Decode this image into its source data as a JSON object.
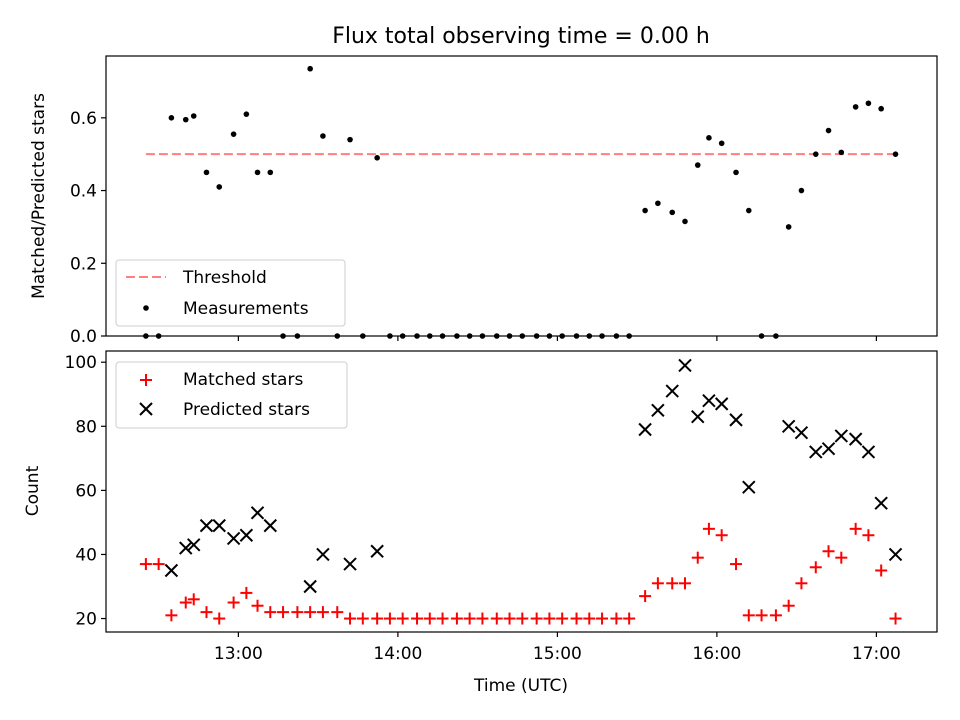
{
  "figure": {
    "title": "Flux total observing time = 0.00 h",
    "xlabel": "Time (UTC)"
  },
  "chart_data": [
    {
      "type": "scatter",
      "panel": "top",
      "title": "Flux total observing time = 0.00 h",
      "xlabel": "",
      "ylabel": "Matched/Predicted stars",
      "x_unit": "hours UTC",
      "xlim": [
        12.17,
        17.38
      ],
      "ylim": [
        0,
        0.77
      ],
      "yticks": [
        0.0,
        0.2,
        0.4,
        0.6
      ],
      "ytick_labels": [
        "0.0",
        "0.2",
        "0.4",
        "0.6"
      ],
      "xticks": [
        13,
        14,
        15,
        16,
        17
      ],
      "grid": false,
      "legend_position": "lower-left",
      "series": [
        {
          "name": "Threshold",
          "kind": "dashed-line",
          "color": "#ff7f7f",
          "x": [
            12.42,
            17.13
          ],
          "y": [
            0.5,
            0.5
          ]
        },
        {
          "name": "Measurements",
          "kind": "dot",
          "color": "#000000",
          "x": [
            12.42,
            12.5,
            12.58,
            12.67,
            12.72,
            12.8,
            12.88,
            12.97,
            13.05,
            13.12,
            13.2,
            13.28,
            13.37,
            13.45,
            13.53,
            13.62,
            13.7,
            13.78,
            13.87,
            13.95,
            14.03,
            14.12,
            14.2,
            14.28,
            14.37,
            14.45,
            14.53,
            14.62,
            14.7,
            14.78,
            14.87,
            14.95,
            15.03,
            15.12,
            15.2,
            15.28,
            15.37,
            15.45,
            15.55,
            15.63,
            15.72,
            15.8,
            15.88,
            15.95,
            16.03,
            16.12,
            16.2,
            16.28,
            16.37,
            16.45,
            16.53,
            16.62,
            16.7,
            16.78,
            16.87,
            16.95,
            17.03,
            17.12
          ],
          "y": [
            0.0,
            0.0,
            0.6,
            0.595,
            0.605,
            0.45,
            0.41,
            0.555,
            0.61,
            0.45,
            0.45,
            0.0,
            0.0,
            0.735,
            0.55,
            0.0,
            0.54,
            0.0,
            0.49,
            0.0,
            0.0,
            0.0,
            0.0,
            0.0,
            0.0,
            0.0,
            0.0,
            0.0,
            0.0,
            0.0,
            0.0,
            0.0,
            0.0,
            0.0,
            0.0,
            0.0,
            0.0,
            0.0,
            0.345,
            0.365,
            0.34,
            0.315,
            0.47,
            0.545,
            0.53,
            0.45,
            0.345,
            0.0,
            0.0,
            0.3,
            0.4,
            0.5,
            0.565,
            0.505,
            0.63,
            0.64,
            0.625,
            0.5
          ]
        }
      ]
    },
    {
      "type": "scatter",
      "panel": "bottom",
      "xlabel": "Time (UTC)",
      "ylabel": "Count",
      "x_unit": "hours UTC",
      "xlim": [
        12.17,
        17.38
      ],
      "ylim": [
        15.8,
        103.5
      ],
      "yticks": [
        20,
        40,
        60,
        80,
        100
      ],
      "ytick_labels": [
        "20",
        "40",
        "60",
        "80",
        "100"
      ],
      "xticks": [
        13,
        14,
        15,
        16,
        17
      ],
      "xtick_labels": [
        "13:00",
        "14:00",
        "15:00",
        "16:00",
        "17:00"
      ],
      "grid": false,
      "legend_position": "upper-left",
      "series": [
        {
          "name": "Matched stars",
          "marker": "+",
          "color": "#ff0000",
          "x": [
            12.42,
            12.5,
            12.58,
            12.67,
            12.72,
            12.8,
            12.88,
            12.97,
            13.05,
            13.12,
            13.2,
            13.28,
            13.37,
            13.45,
            13.53,
            13.62,
            13.7,
            13.78,
            13.87,
            13.95,
            14.03,
            14.12,
            14.2,
            14.28,
            14.37,
            14.45,
            14.53,
            14.62,
            14.7,
            14.78,
            14.87,
            14.95,
            15.03,
            15.12,
            15.2,
            15.28,
            15.37,
            15.45,
            15.55,
            15.63,
            15.72,
            15.8,
            15.88,
            15.95,
            16.03,
            16.12,
            16.2,
            16.28,
            16.37,
            16.45,
            16.53,
            16.62,
            16.7,
            16.78,
            16.87,
            16.95,
            17.03,
            17.12
          ],
          "y": [
            37,
            37,
            21,
            25,
            26,
            22,
            20,
            25,
            28,
            24,
            22,
            22,
            22,
            22,
            22,
            22,
            20,
            20,
            20,
            20,
            20,
            20,
            20,
            20,
            20,
            20,
            20,
            20,
            20,
            20,
            20,
            20,
            20,
            20,
            20,
            20,
            20,
            20,
            27,
            31,
            31,
            31,
            39,
            48,
            46,
            37,
            21,
            21,
            21,
            24,
            31,
            36,
            41,
            39,
            48,
            46,
            35,
            20
          ]
        },
        {
          "name": "Predicted stars",
          "marker": "x",
          "color": "#000000",
          "x": [
            12.58,
            12.67,
            12.72,
            12.8,
            12.88,
            12.97,
            13.05,
            13.12,
            13.2,
            13.45,
            13.53,
            13.7,
            13.87,
            15.55,
            15.63,
            15.72,
            15.8,
            15.88,
            15.95,
            16.03,
            16.12,
            16.2,
            16.45,
            16.53,
            16.62,
            16.7,
            16.78,
            16.87,
            16.95,
            17.03,
            17.12
          ],
          "y": [
            35,
            42,
            43,
            49,
            49,
            45,
            46,
            53,
            49,
            30,
            40,
            37,
            41,
            79,
            85,
            91,
            99,
            83,
            88,
            87,
            82,
            61,
            80,
            78,
            72,
            73,
            77,
            76,
            72,
            56,
            40
          ]
        }
      ]
    }
  ]
}
